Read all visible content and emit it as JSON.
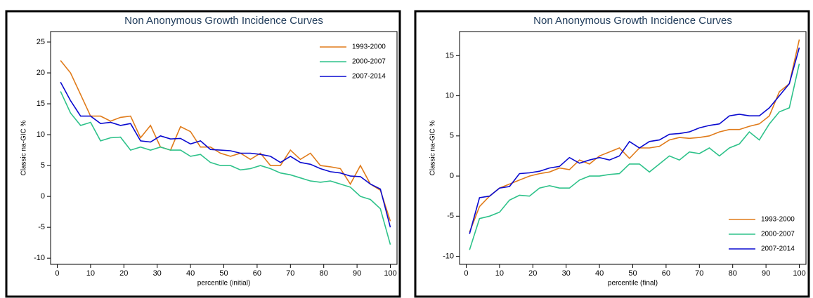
{
  "chart_data": [
    {
      "type": "line",
      "title": "Non Anonymous  Growth Incidence Curves",
      "x_label": "percentile (initial)",
      "y_label": "Classic na-GIC %",
      "legend": "top-right",
      "x": [
        1,
        4,
        7,
        10,
        13,
        16,
        19,
        22,
        25,
        28,
        31,
        34,
        37,
        40,
        43,
        46,
        49,
        52,
        55,
        58,
        61,
        64,
        67,
        70,
        73,
        76,
        79,
        82,
        85,
        88,
        91,
        94,
        97,
        100
      ],
      "series": [
        {
          "name": "1993-2000",
          "color": "#e07b1a",
          "values": [
            22,
            20,
            16.5,
            13,
            13,
            12.2,
            12.8,
            13,
            9.5,
            11.5,
            8,
            7.5,
            11.3,
            10.5,
            8,
            8,
            7,
            6.5,
            7,
            6,
            7,
            5,
            5,
            7.5,
            6,
            7,
            5,
            4.8,
            4.5,
            2,
            5,
            2,
            1,
            -4
          ]
        },
        {
          "name": "2000-2007",
          "color": "#2ec28a",
          "values": [
            17,
            13.5,
            11.5,
            12,
            9,
            9.5,
            9.6,
            7.5,
            8,
            7.5,
            8,
            7.5,
            7.5,
            6.5,
            6.8,
            5.5,
            5,
            5,
            4.3,
            4.5,
            5,
            4.5,
            3.8,
            3.5,
            3,
            2.5,
            2.3,
            2.5,
            2,
            1.5,
            0,
            -0.5,
            -2,
            -7.8
          ]
        },
        {
          "name": "2007-2014",
          "color": "#0a0ad0",
          "values": [
            18.5,
            15.5,
            13,
            13,
            11.8,
            12,
            11.5,
            11.8,
            9,
            8.8,
            9.8,
            9.3,
            9.4,
            8.5,
            9,
            7.6,
            7.5,
            7.4,
            7,
            7,
            6.8,
            6.5,
            5.5,
            6.5,
            5.5,
            5.2,
            4.5,
            4,
            3.8,
            3.3,
            3.2,
            2,
            1.2,
            -5
          ]
        }
      ],
      "xlim": [
        -2,
        102
      ],
      "xticks": [
        0,
        10,
        20,
        30,
        40,
        50,
        60,
        70,
        80,
        90,
        100
      ],
      "ylim": [
        -11,
        26.7
      ],
      "yticks": [
        -10,
        -5,
        0,
        5,
        10,
        15,
        20,
        25
      ]
    },
    {
      "type": "line",
      "title": "Non Anonymous  Growth Incidence Curves",
      "x_label": "percentile (final)",
      "y_label": "Classic na-GIC %",
      "legend": "bottom-right",
      "x": [
        1,
        4,
        7,
        10,
        13,
        16,
        19,
        22,
        25,
        28,
        31,
        34,
        37,
        40,
        43,
        46,
        49,
        52,
        55,
        58,
        61,
        64,
        67,
        70,
        73,
        76,
        79,
        82,
        85,
        88,
        91,
        94,
        97,
        100
      ],
      "series": [
        {
          "name": "1993-2000",
          "color": "#e07b1a",
          "values": [
            -7,
            -3.8,
            -2.5,
            -1.5,
            -1,
            -0.5,
            0,
            0.3,
            0.5,
            1,
            0.8,
            2,
            1.5,
            2.5,
            3,
            3.5,
            2.2,
            3.5,
            3.5,
            3.7,
            4.5,
            4.8,
            4.7,
            4.8,
            5,
            5.5,
            5.8,
            5.8,
            6.2,
            6.5,
            7.5,
            10.5,
            11.5,
            17
          ]
        },
        {
          "name": "2000-2007",
          "color": "#2ec28a",
          "values": [
            -9.2,
            -5.3,
            -5,
            -4.5,
            -3,
            -2.4,
            -2.5,
            -1.5,
            -1.2,
            -1.5,
            -1.5,
            -0.5,
            0,
            0,
            0.2,
            0.3,
            1.5,
            1.5,
            0.5,
            1.5,
            2.5,
            2,
            3,
            2.8,
            3.5,
            2.5,
            3.5,
            4,
            5.5,
            4.5,
            6.5,
            8,
            8.5,
            14
          ]
        },
        {
          "name": "2007-2014",
          "color": "#0a0ad0",
          "values": [
            -7.2,
            -2.7,
            -2.5,
            -1.5,
            -1.3,
            0.3,
            0.4,
            0.6,
            1,
            1.2,
            2.3,
            1.6,
            2,
            2.3,
            2,
            2.5,
            4.3,
            3.5,
            4.3,
            4.5,
            5.2,
            5.3,
            5.5,
            6,
            6.3,
            6.5,
            7.5,
            7.7,
            7.5,
            7.5,
            8.5,
            10,
            11.5,
            16
          ]
        }
      ],
      "xlim": [
        -2,
        102
      ],
      "xticks": [
        0,
        10,
        20,
        30,
        40,
        50,
        60,
        70,
        80,
        90,
        100
      ],
      "ylim": [
        -11,
        18
      ],
      "yticks": [
        -10,
        -5,
        0,
        5,
        10,
        15
      ]
    }
  ]
}
